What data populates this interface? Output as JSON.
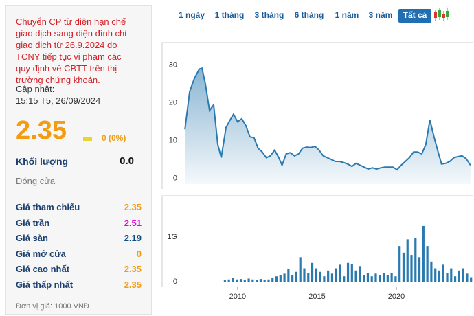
{
  "notice": [
    "Chuyển CP từ diện hạn chế",
    "giao dịch sang diện đình chỉ",
    "giao dịch từ 26.9.2024 do",
    "TCNY tiếp tục vi phạm các",
    "quy định về CBTT trên thị",
    "trường chứng khoán."
  ],
  "updated_label": "Cập nhật:",
  "updated_time": "15:15 T5, 26/09/2024",
  "price": "2.35",
  "change": "0 (0%)",
  "volume_label": "Khối lượng",
  "volume": "0.0",
  "status": "Đóng cửa",
  "stats": [
    {
      "label": "Giá tham chiếu",
      "value": "2.35",
      "color": "#f39c12"
    },
    {
      "label": "Giá trần",
      "value": "2.51",
      "color": "#e000d8"
    },
    {
      "label": "Giá sàn",
      "value": "2.19",
      "color": "#0f4c7c"
    },
    {
      "label": "Giá mở cửa",
      "value": "0",
      "color": "#f39c12"
    },
    {
      "label": "Giá cao nhất",
      "value": "2.35",
      "color": "#f39c12"
    },
    {
      "label": "Giá thấp nhất",
      "value": "2.35",
      "color": "#f39c12"
    }
  ],
  "unit": "Đơn vị giá: 1000 VNĐ",
  "ranges": [
    "1 ngày",
    "1 tháng",
    "3 tháng",
    "6 tháng",
    "1 năm",
    "3 năm",
    "Tất cả"
  ],
  "active_range": 6,
  "chart_data": [
    {
      "type": "area",
      "color": "#2a7ab0",
      "x": [
        2006.68,
        2006.98,
        2007.28,
        2007.59,
        2007.76,
        2007.97,
        2008.23,
        2008.49,
        2008.75,
        2008.97,
        2009.27,
        2009.53,
        2009.74,
        2010.0,
        2010.26,
        2010.52,
        2010.78,
        2011.03,
        2011.29,
        2011.55,
        2011.81,
        2012.07,
        2012.33,
        2012.59,
        2012.8,
        2013.06,
        2013.32,
        2013.58,
        2013.84,
        2014.09,
        2014.35,
        2014.61,
        2014.87,
        2015.13,
        2015.39,
        2015.65,
        2015.91,
        2016.16,
        2016.42,
        2016.68,
        2016.94,
        2017.2,
        2017.46,
        2017.72,
        2017.97,
        2018.23,
        2018.49,
        2018.75,
        2019.01,
        2019.27,
        2019.53,
        2019.78,
        2020.04,
        2020.3,
        2020.56,
        2020.82,
        2021.08,
        2021.34,
        2021.6,
        2021.85,
        2022.11,
        2022.37,
        2022.63,
        2022.84,
        2023.1,
        2023.36,
        2023.62,
        2023.88,
        2024.14,
        2024.4,
        2024.66
      ],
      "values": [
        13,
        23,
        26.5,
        29,
        29.2,
        25,
        18,
        19.5,
        9,
        5.5,
        13.5,
        15.5,
        17,
        15,
        15.8,
        14,
        11,
        10.8,
        8,
        7,
        5.5,
        6,
        7.5,
        5.5,
        3.5,
        6.5,
        6.8,
        6,
        6.5,
        8,
        8.3,
        8.2,
        8.5,
        7.5,
        6,
        5.5,
        5,
        4.5,
        4.5,
        4.2,
        3.8,
        3.2,
        4,
        3.5,
        3,
        2.5,
        2.8,
        2.5,
        2.8,
        3,
        3,
        3,
        2.3,
        3.5,
        4.5,
        5.5,
        7,
        7,
        6.5,
        9,
        15.5,
        11,
        7,
        3.8,
        4,
        4.5,
        5.5,
        5.8,
        6,
        5.2,
        3.5
      ],
      "xlim": [
        2006.5,
        2024.8
      ],
      "ylim": [
        -1.5,
        34.5
      ],
      "yticks": [
        0,
        10,
        20,
        30
      ]
    },
    {
      "type": "bar",
      "color": "#2a7ab0",
      "x": [
        2009.2,
        2009.45,
        2009.7,
        2009.95,
        2010.2,
        2010.45,
        2010.7,
        2010.95,
        2011.2,
        2011.45,
        2011.7,
        2011.95,
        2012.2,
        2012.45,
        2012.7,
        2012.95,
        2013.2,
        2013.45,
        2013.7,
        2013.95,
        2014.2,
        2014.45,
        2014.7,
        2014.95,
        2015.2,
        2015.45,
        2015.7,
        2015.95,
        2016.2,
        2016.45,
        2016.7,
        2016.95,
        2017.2,
        2017.45,
        2017.7,
        2017.95,
        2018.2,
        2018.45,
        2018.7,
        2018.95,
        2019.2,
        2019.45,
        2019.7,
        2019.95,
        2020.2,
        2020.45,
        2020.7,
        2020.95,
        2021.2,
        2021.45,
        2021.7,
        2021.95,
        2022.2,
        2022.45,
        2022.7,
        2022.95,
        2023.2,
        2023.45,
        2023.7,
        2023.95,
        2024.2,
        2024.45,
        2024.7
      ],
      "values": [
        0.03,
        0.05,
        0.08,
        0.05,
        0.06,
        0.04,
        0.07,
        0.05,
        0.04,
        0.06,
        0.04,
        0.05,
        0.08,
        0.12,
        0.15,
        0.18,
        0.28,
        0.15,
        0.22,
        0.55,
        0.3,
        0.2,
        0.42,
        0.3,
        0.22,
        0.12,
        0.25,
        0.18,
        0.3,
        0.38,
        0.12,
        0.42,
        0.4,
        0.25,
        0.35,
        0.15,
        0.2,
        0.12,
        0.18,
        0.15,
        0.2,
        0.15,
        0.2,
        0.12,
        0.8,
        0.65,
        0.95,
        0.6,
        0.98,
        0.55,
        1.25,
        0.8,
        0.45,
        0.3,
        0.25,
        0.38,
        0.2,
        0.3,
        0.12,
        0.25,
        0.3,
        0.18,
        0.1
      ],
      "xlim": [
        2006.5,
        2024.8
      ],
      "ylim": [
        0,
        1.85
      ],
      "yticks": [
        0,
        {
          "value": 1,
          "label": "1G"
        }
      ],
      "xticks": [
        2010,
        2015,
        2020
      ]
    }
  ]
}
